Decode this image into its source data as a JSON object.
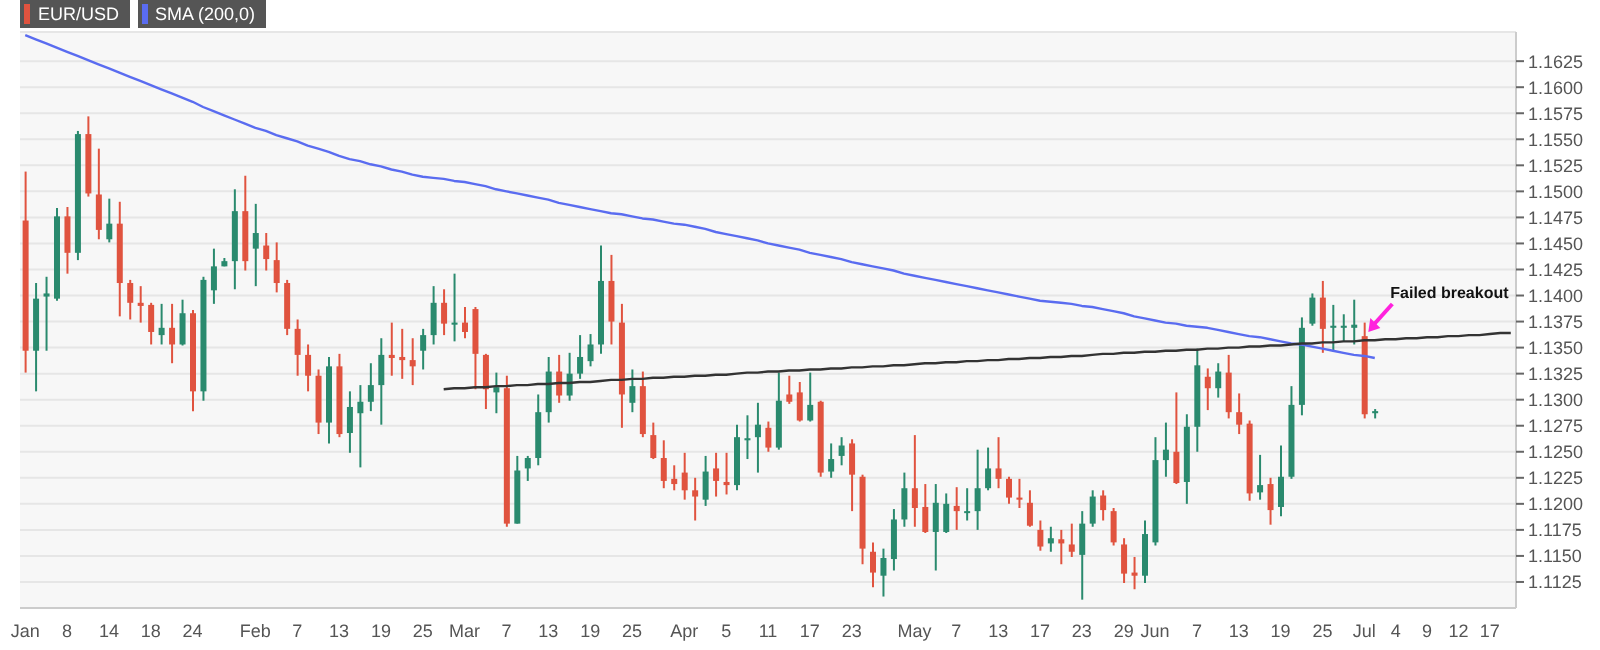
{
  "chart_data": {
    "type": "candlestick",
    "categories": [
      "Jan",
      null,
      null,
      null,
      "8",
      null,
      null,
      null,
      "14",
      null,
      null,
      null,
      "18",
      null,
      null,
      null,
      "24",
      null,
      null,
      null,
      null,
      null,
      "Feb",
      null,
      null,
      null,
      "7",
      null,
      null,
      null,
      "13",
      null,
      null,
      null,
      "19",
      null,
      null,
      null,
      "25",
      null,
      null,
      null,
      "Mar",
      null,
      null,
      null,
      "7",
      null,
      null,
      null,
      "13",
      null,
      null,
      null,
      "19",
      null,
      null,
      null,
      "25",
      null,
      null,
      null,
      null,
      "Apr",
      null,
      null,
      null,
      "5",
      null,
      null,
      null,
      "11",
      null,
      null,
      null,
      "17",
      null,
      null,
      null,
      "23",
      null,
      null,
      null,
      null,
      null,
      "May",
      null,
      null,
      null,
      "7",
      null,
      null,
      null,
      "13",
      null,
      null,
      null,
      "17",
      null,
      null,
      null,
      "23",
      null,
      null,
      null,
      "29",
      null,
      null,
      "Jun",
      null,
      null,
      null,
      "7",
      null,
      null,
      null,
      "13",
      null,
      null,
      null,
      "19",
      null,
      null,
      null,
      "25",
      null,
      null,
      null,
      "Jul",
      null,
      null,
      "4",
      null,
      null,
      "9",
      null,
      null,
      "12",
      null,
      null,
      "17",
      null,
      null
    ],
    "series": [
      {
        "name": "EUR/USD",
        "colors": [
          "#e0533f",
          "#2a8a6e",
          "#2a8a6e",
          "#2a8a6e",
          "#e0533f",
          "#2a8a6e",
          "#e0533f",
          "#e0533f",
          "#2a8a6e",
          "#e0533f",
          "#e0533f",
          "#e0533f",
          "#e0533f",
          "#2a8a6e",
          "#e0533f",
          "#2a8a6e",
          "#e0533f",
          "#2a8a6e",
          "#2a8a6e",
          "#2a8a6e",
          "#2a8a6e",
          "#e0533f",
          "#2a8a6e",
          "#e0533f",
          "#e0533f",
          "#e0533f",
          "#e0533f",
          "#e0533f",
          "#e0533f",
          "#2a8a6e",
          "#e0533f",
          "#2a8a6e",
          "#2a8a6e",
          "#2a8a6e",
          "#2a8a6e",
          "#e0533f",
          "#e0533f",
          "#e0533f",
          "#2a8a6e",
          "#2a8a6e",
          "#e0533f",
          "#2a8a6e",
          "#e0533f",
          "#e0533f",
          "#e0533f",
          "#2a8a6e",
          "#e0533f",
          "#2a8a6e",
          "#2a8a6e",
          "#2a8a6e",
          "#2a8a6e",
          "#e0533f",
          "#2a8a6e",
          "#2a8a6e",
          "#2a8a6e",
          "#2a8a6e",
          "#e0533f",
          "#e0533f",
          "#2a8a6e",
          "#e0533f",
          "#e0533f",
          "#e0533f",
          "#e0533f",
          "#e0533f",
          "#e0533f",
          "#2a8a6e",
          "#e0533f",
          "#e0533f",
          "#2a8a6e",
          "#2a8a6e",
          "#2a8a6e",
          "#e0533f",
          "#2a8a6e",
          "#e0533f",
          "#e0533f",
          "#2a8a6e",
          "#e0533f",
          "#2a8a6e",
          "#2a8a6e",
          "#e0533f",
          "#e0533f",
          "#e0533f",
          "#2a8a6e",
          "#2a8a6e",
          "#2a8a6e",
          "#e0533f",
          "#e0533f",
          "#2a8a6e",
          "#2a8a6e",
          "#e0533f",
          "#2a8a6e",
          "#2a8a6e",
          "#2a8a6e",
          "#e0533f",
          "#e0533f",
          "#e0533f",
          "#e0533f",
          "#e0533f",
          "#2a8a6e",
          "#e0533f",
          "#e0533f",
          "#2a8a6e",
          "#2a8a6e",
          "#e0533f",
          "#e0533f",
          "#e0533f",
          "#e0533f",
          "#2a8a6e",
          "#2a8a6e",
          "#2a8a6e",
          "#e0533f",
          "#2a8a6e",
          "#2a8a6e",
          "#e0533f",
          "#2a8a6e",
          "#e0533f",
          "#e0533f",
          "#e0533f",
          "#2a8a6e",
          "#e0533f",
          "#2a8a6e",
          "#2a8a6e",
          "#2a8a6e",
          "#2a8a6e",
          "#e0533f",
          "#2a8a6e",
          "#2a8a6e",
          "#2a8a6e",
          "#e0533f",
          "#2a8a6e",
          null,
          null,
          null,
          null,
          null,
          null,
          null,
          null,
          null,
          null,
          null,
          null,
          null
        ],
        "ohlc": [
          [
            1.1472,
            1.1519,
            1.1326,
            1.1347
          ],
          [
            1.1347,
            1.1412,
            1.1308,
            1.1397
          ],
          [
            1.1399,
            1.1418,
            1.1347,
            1.1402
          ],
          [
            1.1397,
            1.1484,
            1.1395,
            1.1476
          ],
          [
            1.1476,
            1.1485,
            1.1421,
            1.1441
          ],
          [
            1.1441,
            1.1558,
            1.1434,
            1.1555
          ],
          [
            1.1555,
            1.1572,
            1.1495,
            1.1498
          ],
          [
            1.1497,
            1.1541,
            1.1454,
            1.1463
          ],
          [
            1.1454,
            1.1493,
            1.1451,
            1.1469
          ],
          [
            1.1469,
            1.149,
            1.138,
            1.1412
          ],
          [
            1.1412,
            1.1415,
            1.1377,
            1.1393
          ],
          [
            1.1393,
            1.1409,
            1.1374,
            1.139
          ],
          [
            1.1391,
            1.1393,
            1.1353,
            1.1365
          ],
          [
            1.1362,
            1.1392,
            1.1353,
            1.1369
          ],
          [
            1.1369,
            1.1392,
            1.1335,
            1.1353
          ],
          [
            1.1353,
            1.1396,
            1.1352,
            1.1383
          ],
          [
            1.1383,
            1.1386,
            1.1289,
            1.1308
          ],
          [
            1.1308,
            1.1418,
            1.1299,
            1.1415
          ],
          [
            1.1405,
            1.1445,
            1.1392,
            1.1428
          ],
          [
            1.1428,
            1.1436,
            1.1428,
            1.1433
          ],
          [
            1.1433,
            1.1502,
            1.1406,
            1.1481
          ],
          [
            1.1481,
            1.1515,
            1.1424,
            1.1433
          ],
          [
            1.1445,
            1.1488,
            1.1409,
            1.146
          ],
          [
            1.1448,
            1.146,
            1.1424,
            1.1435
          ],
          [
            1.1434,
            1.1451,
            1.1403,
            1.1412
          ],
          [
            1.1412,
            1.1415,
            1.1362,
            1.1368
          ],
          [
            1.1368,
            1.1377,
            1.1323,
            1.1343
          ],
          [
            1.1343,
            1.1353,
            1.1308,
            1.1323
          ],
          [
            1.1323,
            1.1329,
            1.1267,
            1.1278
          ],
          [
            1.1278,
            1.1341,
            1.1258,
            1.1332
          ],
          [
            1.1332,
            1.1344,
            1.1264,
            1.1267
          ],
          [
            1.1268,
            1.1308,
            1.1249,
            1.1293
          ],
          [
            1.1287,
            1.1314,
            1.1235,
            1.1298
          ],
          [
            1.1298,
            1.1335,
            1.1289,
            1.1314
          ],
          [
            1.1314,
            1.1359,
            1.1276,
            1.1343
          ],
          [
            1.1343,
            1.1374,
            1.1323,
            1.134
          ],
          [
            1.1341,
            1.1368,
            1.132,
            1.1338
          ],
          [
            1.1338,
            1.1359,
            1.1314,
            1.1332
          ],
          [
            1.1347,
            1.1368,
            1.1329,
            1.1362
          ],
          [
            1.1362,
            1.1409,
            1.1353,
            1.1393
          ],
          [
            1.1393,
            1.1406,
            1.1362,
            1.1373
          ],
          [
            1.1372,
            1.1421,
            1.1356,
            1.1374
          ],
          [
            1.1374,
            1.1389,
            1.1359,
            1.1365
          ],
          [
            1.1387,
            1.1389,
            1.131,
            1.1344
          ],
          [
            1.1343,
            1.1344,
            1.1291,
            1.131
          ],
          [
            1.1307,
            1.1326,
            1.1287,
            1.1312
          ],
          [
            1.1311,
            1.1323,
            1.1178,
            1.1181
          ],
          [
            1.1181,
            1.1246,
            1.1181,
            1.1232
          ],
          [
            1.1234,
            1.1246,
            1.1222,
            1.1244
          ],
          [
            1.1244,
            1.1305,
            1.1237,
            1.1288
          ],
          [
            1.1288,
            1.1341,
            1.1278,
            1.1327
          ],
          [
            1.1327,
            1.1343,
            1.1297,
            1.1304
          ],
          [
            1.1304,
            1.1345,
            1.1299,
            1.1325
          ],
          [
            1.1325,
            1.1362,
            1.132,
            1.1341
          ],
          [
            1.1337,
            1.1363,
            1.1332,
            1.1353
          ],
          [
            1.1353,
            1.1448,
            1.1344,
            1.1414
          ],
          [
            1.1414,
            1.1439,
            1.1353,
            1.1375
          ],
          [
            1.1374,
            1.1392,
            1.1273,
            1.1305
          ],
          [
            1.1297,
            1.1329,
            1.1288,
            1.1313
          ],
          [
            1.1313,
            1.1327,
            1.1264,
            1.1267
          ],
          [
            1.1266,
            1.1278,
            1.1243,
            1.1244
          ],
          [
            1.1244,
            1.1261,
            1.1215,
            1.1222
          ],
          [
            1.1224,
            1.1237,
            1.1213,
            1.1219
          ],
          [
            1.123,
            1.1249,
            1.1204,
            1.1213
          ],
          [
            1.1213,
            1.1225,
            1.1184,
            1.1207
          ],
          [
            1.1204,
            1.1246,
            1.1198,
            1.1231
          ],
          [
            1.1234,
            1.1249,
            1.1207,
            1.1222
          ],
          [
            1.1221,
            1.1249,
            1.1209,
            1.1218
          ],
          [
            1.1218,
            1.1276,
            1.1213,
            1.1264
          ],
          [
            1.1261,
            1.1285,
            1.1243,
            1.1263
          ],
          [
            1.1264,
            1.1297,
            1.123,
            1.1276
          ],
          [
            1.1273,
            1.1279,
            1.125,
            1.1254
          ],
          [
            1.1254,
            1.1326,
            1.1252,
            1.1299
          ],
          [
            1.1305,
            1.1323,
            1.1296,
            1.1298
          ],
          [
            1.1307,
            1.1317,
            1.1279,
            1.128
          ],
          [
            1.128,
            1.1326,
            1.1279,
            1.1295
          ],
          [
            1.1298,
            1.1299,
            1.1226,
            1.123
          ],
          [
            1.1231,
            1.1258,
            1.1225,
            1.1243
          ],
          [
            1.1246,
            1.1264,
            1.1237,
            1.1256
          ],
          [
            1.1258,
            1.1262,
            1.1193,
            1.1228
          ],
          [
            1.1226,
            1.1228,
            1.1142,
            1.1157
          ],
          [
            1.1154,
            1.1163,
            1.112,
            1.1134
          ],
          [
            1.1131,
            1.1157,
            1.1111,
            1.1148
          ],
          [
            1.1147,
            1.1195,
            1.1136,
            1.1185
          ],
          [
            1.1185,
            1.123,
            1.1178,
            1.1215
          ],
          [
            1.1215,
            1.1266,
            1.1178,
            1.1196
          ],
          [
            1.1197,
            1.1219,
            1.1172,
            1.1173
          ],
          [
            1.1173,
            1.1219,
            1.1136,
            1.1201
          ],
          [
            1.1173,
            1.121,
            1.1172,
            1.12
          ],
          [
            1.1198,
            1.1216,
            1.1175,
            1.1193
          ],
          [
            1.1192,
            1.1215,
            1.1184,
            1.1193
          ],
          [
            1.1193,
            1.1252,
            1.1175,
            1.1215
          ],
          [
            1.1215,
            1.1254,
            1.1213,
            1.1234
          ],
          [
            1.1234,
            1.1264,
            1.1215,
            1.1224
          ],
          [
            1.1224,
            1.1226,
            1.12,
            1.1206
          ],
          [
            1.1206,
            1.1224,
            1.1196,
            1.1204
          ],
          [
            1.1201,
            1.1213,
            1.1178,
            1.1179
          ],
          [
            1.1175,
            1.1184,
            1.1155,
            1.1159
          ],
          [
            1.1162,
            1.1178,
            1.1154,
            1.1167
          ],
          [
            1.1166,
            1.1175,
            1.1142,
            1.1162
          ],
          [
            1.1161,
            1.1181,
            1.1149,
            1.1154
          ],
          [
            1.1151,
            1.1193,
            1.1108,
            1.1181
          ],
          [
            1.1181,
            1.1213,
            1.1178,
            1.1207
          ],
          [
            1.1208,
            1.1213,
            1.1184,
            1.1194
          ],
          [
            1.1193,
            1.1196,
            1.116,
            1.1163
          ],
          [
            1.1161,
            1.1167,
            1.1124,
            1.1133
          ],
          [
            1.1134,
            1.1149,
            1.1118,
            1.1131
          ],
          [
            1.1131,
            1.1184,
            1.1124,
            1.1171
          ],
          [
            1.1163,
            1.1264,
            1.116,
            1.1242
          ],
          [
            1.1242,
            1.1278,
            1.1226,
            1.1252
          ],
          [
            1.125,
            1.1307,
            1.1219,
            1.122
          ],
          [
            1.1221,
            1.1286,
            1.12,
            1.1274
          ],
          [
            1.1274,
            1.1349,
            1.125,
            1.1333
          ],
          [
            1.1322,
            1.133,
            1.129,
            1.1311
          ],
          [
            1.1311,
            1.1335,
            1.1302,
            1.1327
          ],
          [
            1.1326,
            1.1343,
            1.1282,
            1.1288
          ],
          [
            1.1288,
            1.1306,
            1.1267,
            1.1276
          ],
          [
            1.1277,
            1.128,
            1.1203,
            1.121
          ],
          [
            1.1211,
            1.1247,
            1.1204,
            1.1218
          ],
          [
            1.1219,
            1.1225,
            1.118,
            1.1194
          ],
          [
            1.1197,
            1.1256,
            1.1188,
            1.1226
          ],
          [
            1.1226,
            1.1313,
            1.1224,
            1.1295
          ],
          [
            1.1295,
            1.1379,
            1.1285,
            1.1369
          ],
          [
            1.1373,
            1.1402,
            1.1371,
            1.1398
          ],
          [
            1.1398,
            1.1414,
            1.1345,
            1.1368
          ],
          [
            1.1369,
            1.1391,
            1.1347,
            1.1371
          ],
          [
            1.1369,
            1.1382,
            1.1356,
            1.1371
          ],
          [
            1.1369,
            1.1396,
            1.1353,
            1.1372
          ],
          [
            1.1361,
            1.1374,
            1.1282,
            1.1286
          ],
          [
            1.1287,
            1.1291,
            1.1282,
            1.1289
          ],
          null,
          null,
          null,
          null,
          null,
          null,
          null,
          null,
          null,
          null,
          null,
          null,
          null
        ]
      },
      {
        "type": "line",
        "name": "SMA (200,0)",
        "color": "#5a6cf0",
        "values": [
          1.165,
          1.1646,
          1.1642,
          1.1638,
          1.1634,
          1.163,
          1.1626,
          1.1622,
          1.1618,
          1.1614,
          1.161,
          1.1606,
          1.1602,
          1.1598,
          1.1594,
          1.159,
          1.1586,
          1.1581,
          1.1577,
          1.1573,
          1.1569,
          1.1565,
          1.1561,
          1.1558,
          1.1554,
          1.1551,
          1.1548,
          1.1544,
          1.1541,
          1.1538,
          1.1534,
          1.1531,
          1.1529,
          1.1526,
          1.1524,
          1.1521,
          1.1519,
          1.1516,
          1.1514,
          1.1513,
          1.1512,
          1.151,
          1.1509,
          1.1507,
          1.1505,
          1.1502,
          1.15,
          1.1498,
          1.1496,
          1.1494,
          1.1492,
          1.1489,
          1.1487,
          1.1485,
          1.1483,
          1.1481,
          1.1479,
          1.1478,
          1.1476,
          1.1474,
          1.1473,
          1.1471,
          1.1469,
          1.1468,
          1.1466,
          1.1464,
          1.1461,
          1.1459,
          1.1457,
          1.1455,
          1.1453,
          1.145,
          1.1448,
          1.1446,
          1.1444,
          1.1441,
          1.1439,
          1.1437,
          1.1435,
          1.1432,
          1.143,
          1.1428,
          1.1426,
          1.1424,
          1.1421,
          1.1419,
          1.1417,
          1.1415,
          1.1413,
          1.1411,
          1.1409,
          1.1407,
          1.1405,
          1.1403,
          1.1401,
          1.1399,
          1.1397,
          1.1395,
          1.1394,
          1.1393,
          1.1392,
          1.139,
          1.1389,
          1.1387,
          1.1385,
          1.1383,
          1.138,
          1.1378,
          1.1376,
          1.1374,
          1.1373,
          1.1371,
          1.137,
          1.1369,
          1.1367,
          1.1365,
          1.1363,
          1.1361,
          1.136,
          1.1358,
          1.1356,
          1.1354,
          1.1353,
          1.1351,
          1.1349,
          1.1347,
          1.1345,
          1.1343,
          1.1342,
          1.134,
          null,
          null,
          null,
          null,
          null,
          null,
          null,
          null,
          null,
          null,
          null,
          null,
          null
        ]
      },
      {
        "type": "line",
        "color": "#333333",
        "values": [
          null,
          null,
          null,
          null,
          null,
          null,
          null,
          null,
          null,
          null,
          null,
          null,
          null,
          null,
          null,
          null,
          null,
          null,
          null,
          null,
          null,
          null,
          null,
          null,
          null,
          null,
          null,
          null,
          null,
          null,
          null,
          null,
          null,
          null,
          null,
          null,
          null,
          null,
          null,
          null,
          1.131,
          1.1311,
          1.1311,
          1.1312,
          1.1312,
          1.1313,
          1.1313,
          1.1314,
          1.1314,
          1.1315,
          1.1315,
          1.1316,
          1.1316,
          1.1317,
          1.1317,
          1.1318,
          1.1319,
          1.1319,
          1.132,
          1.132,
          1.1321,
          1.1321,
          1.1322,
          1.1322,
          1.1323,
          1.1323,
          1.1324,
          1.1324,
          1.1325,
          1.1326,
          1.1326,
          1.1327,
          1.1327,
          1.1328,
          1.1328,
          1.1329,
          1.1329,
          1.133,
          1.133,
          1.1331,
          1.1331,
          1.1332,
          1.1332,
          1.1333,
          1.1333,
          1.1334,
          1.1335,
          1.1335,
          1.1336,
          1.1336,
          1.1337,
          1.1337,
          1.1338,
          1.1338,
          1.1339,
          1.1339,
          1.134,
          1.134,
          1.1341,
          1.1341,
          1.1342,
          1.1342,
          1.1343,
          1.1344,
          1.1344,
          1.1345,
          1.1345,
          1.1346,
          1.1346,
          1.1347,
          1.1347,
          1.1348,
          1.1348,
          1.1349,
          1.1349,
          1.135,
          1.135,
          1.1351,
          1.1351,
          1.1352,
          1.1352,
          1.1353,
          1.1354,
          1.1354,
          1.1355,
          1.1355,
          1.1356,
          1.1356,
          1.1357,
          1.1357,
          1.1358,
          1.1358,
          1.1359,
          1.1359,
          1.136,
          1.136,
          1.1361,
          1.1361,
          1.1362,
          1.1362,
          1.1363,
          1.1364,
          1.1364
        ]
      }
    ],
    "ylim": [
      1.11,
      1.1653
    ],
    "yticks": [
      {
        "value": 1.1125,
        "label": "1.1125"
      },
      {
        "value": 1.115,
        "label": "1.1150"
      },
      {
        "value": 1.1175,
        "label": "1.1175"
      },
      {
        "value": 1.12,
        "label": "1.1200"
      },
      {
        "value": 1.1225,
        "label": "1.1225"
      },
      {
        "value": 1.125,
        "label": "1.1250"
      },
      {
        "value": 1.1275,
        "label": "1.1275"
      },
      {
        "value": 1.13,
        "label": "1.1300"
      },
      {
        "value": 1.1325,
        "label": "1.1325"
      },
      {
        "value": 1.135,
        "label": "1.1350"
      },
      {
        "value": 1.1375,
        "label": "1.1375"
      },
      {
        "value": 1.14,
        "label": "1.1400"
      },
      {
        "value": 1.1425,
        "label": "1.1425"
      },
      {
        "value": 1.145,
        "label": "1.1450"
      },
      {
        "value": 1.1475,
        "label": "1.1475"
      },
      {
        "value": 1.15,
        "label": "1.1500"
      },
      {
        "value": 1.1525,
        "label": "1.1525"
      },
      {
        "value": 1.155,
        "label": "1.1550"
      },
      {
        "value": 1.1575,
        "label": "1.1575"
      },
      {
        "value": 1.16,
        "label": "1.1600"
      },
      {
        "value": 1.1625,
        "label": "1.1625"
      }
    ],
    "grid": "y",
    "annotations": [
      {
        "text": "Failed breakout",
        "x": "Jul",
        "y": 1.1365
      }
    ],
    "legend": "top left"
  }
}
